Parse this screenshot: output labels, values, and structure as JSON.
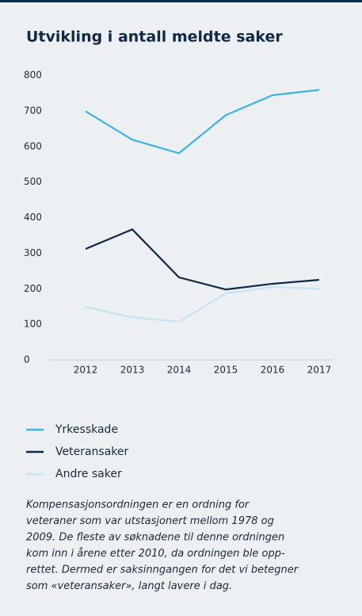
{
  "chart_data": {
    "type": "line",
    "title": "Utvikling i antall meldte saker",
    "x": [
      "2012",
      "2013",
      "2014",
      "2015",
      "2016",
      "2017"
    ],
    "ylim": [
      0,
      800
    ],
    "yticks": [
      0,
      100,
      200,
      300,
      400,
      500,
      600,
      700,
      800
    ],
    "series": [
      {
        "name": "Yrkesskade",
        "color": "#3bb4e5",
        "values": [
          699,
          619,
          581,
          688,
          744,
          759
        ]
      },
      {
        "name": "Veteransaker",
        "color": "#0e2a47",
        "values": [
          312,
          367,
          232,
          198,
          214,
          225
        ]
      },
      {
        "name": "Andre saker",
        "color": "#c5e3f5",
        "values": [
          149,
          120,
          107,
          187,
          205,
          200
        ]
      }
    ],
    "note": [
      "Kompensasjonsordningen er en ordning for",
      "veteraner som var utstasjonert mellom 1978 og",
      "2009. De fleste av søknadene til denne ordningen",
      "kom inn i årene etter 2010, da ordningen ble opp-",
      "rettet. Dermed er saksinngangen for det vi betegner",
      "som «veteransaker», langt lavere i dag."
    ]
  }
}
